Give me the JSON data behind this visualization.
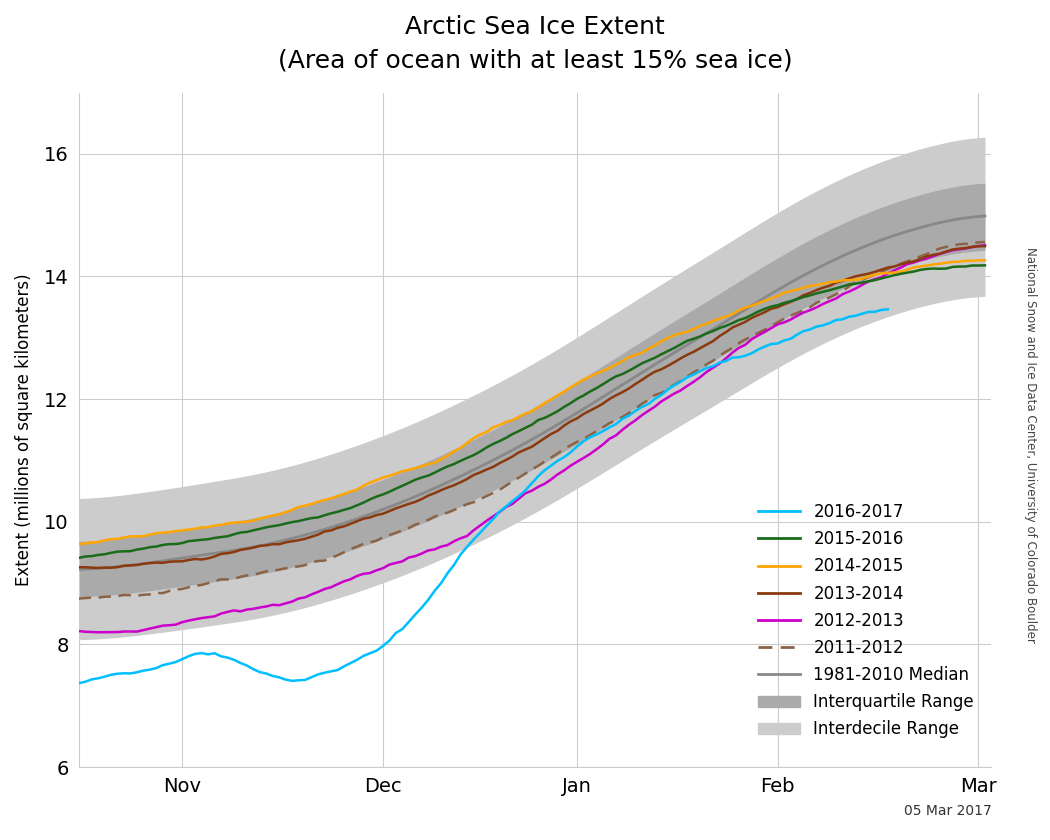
{
  "title_line1": "Arctic Sea Ice Extent",
  "title_line2": "(Area of ocean with at least 15% sea ice)",
  "ylabel": "Extent (millions of square kilometers)",
  "ylim": [
    6,
    17
  ],
  "yticks": [
    6,
    8,
    10,
    12,
    14,
    16
  ],
  "date_label": "05 Mar 2017",
  "watermark": "National Snow and Ice Data Center, University of Colorado Boulder",
  "background_color": "#ffffff",
  "colors": {
    "2016_2017": "#00BFFF",
    "2015_2016": "#1A6B1A",
    "2014_2015": "#FFA500",
    "2013_2014": "#8B3A0F",
    "2012_2013": "#CC00CC",
    "2011_2012": "#8B6347",
    "median": "#888888",
    "interquartile": "#aaaaaa",
    "interdecile": "#cccccc"
  },
  "n_days": 141,
  "xlim_start": 0,
  "xlim_end": 141,
  "xtick_positions": [
    16,
    47,
    77,
    108,
    139
  ],
  "xtick_labels": [
    "Nov",
    "Dec",
    "Jan",
    "Feb",
    "Mar"
  ],
  "legend_entries": [
    "2016-2017",
    "2015-2016",
    "2014-2015",
    "2013-2014",
    "2012-2013",
    "2011-2012",
    "1981-2010 Median",
    "Interquartile Range",
    "Interdecile Range"
  ]
}
